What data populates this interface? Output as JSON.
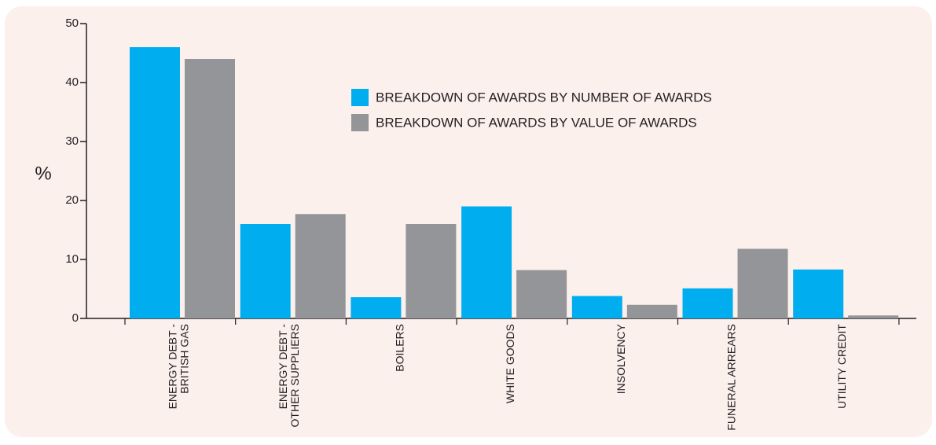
{
  "chart_data": {
    "type": "bar",
    "ylabel": "%",
    "categories": [
      "ENERGY DEBT -\nBRITISH GAS",
      "ENERGY DEBT -\nOTHER SUPPLIERS",
      "BOILERS",
      "WHITE GOODS",
      "INSOLVENCY",
      "FUNERAL ARREARS",
      "UTILITY CREDIT"
    ],
    "series": [
      {
        "name": "BREAKDOWN OF AWARDS BY NUMBER OF AWARDS",
        "color": "#00aeef",
        "values": [
          46,
          16,
          3.6,
          19,
          3.8,
          5.1,
          8.3
        ]
      },
      {
        "name": "BREAKDOWN OF AWARDS BY VALUE OF AWARDS",
        "color": "#939598",
        "values": [
          44,
          17.7,
          16,
          8.2,
          2.3,
          11.8,
          0.5
        ]
      }
    ],
    "ylim": [
      0,
      50
    ],
    "yticks": [
      0,
      10,
      20,
      30,
      40,
      50
    ],
    "grid": false
  }
}
